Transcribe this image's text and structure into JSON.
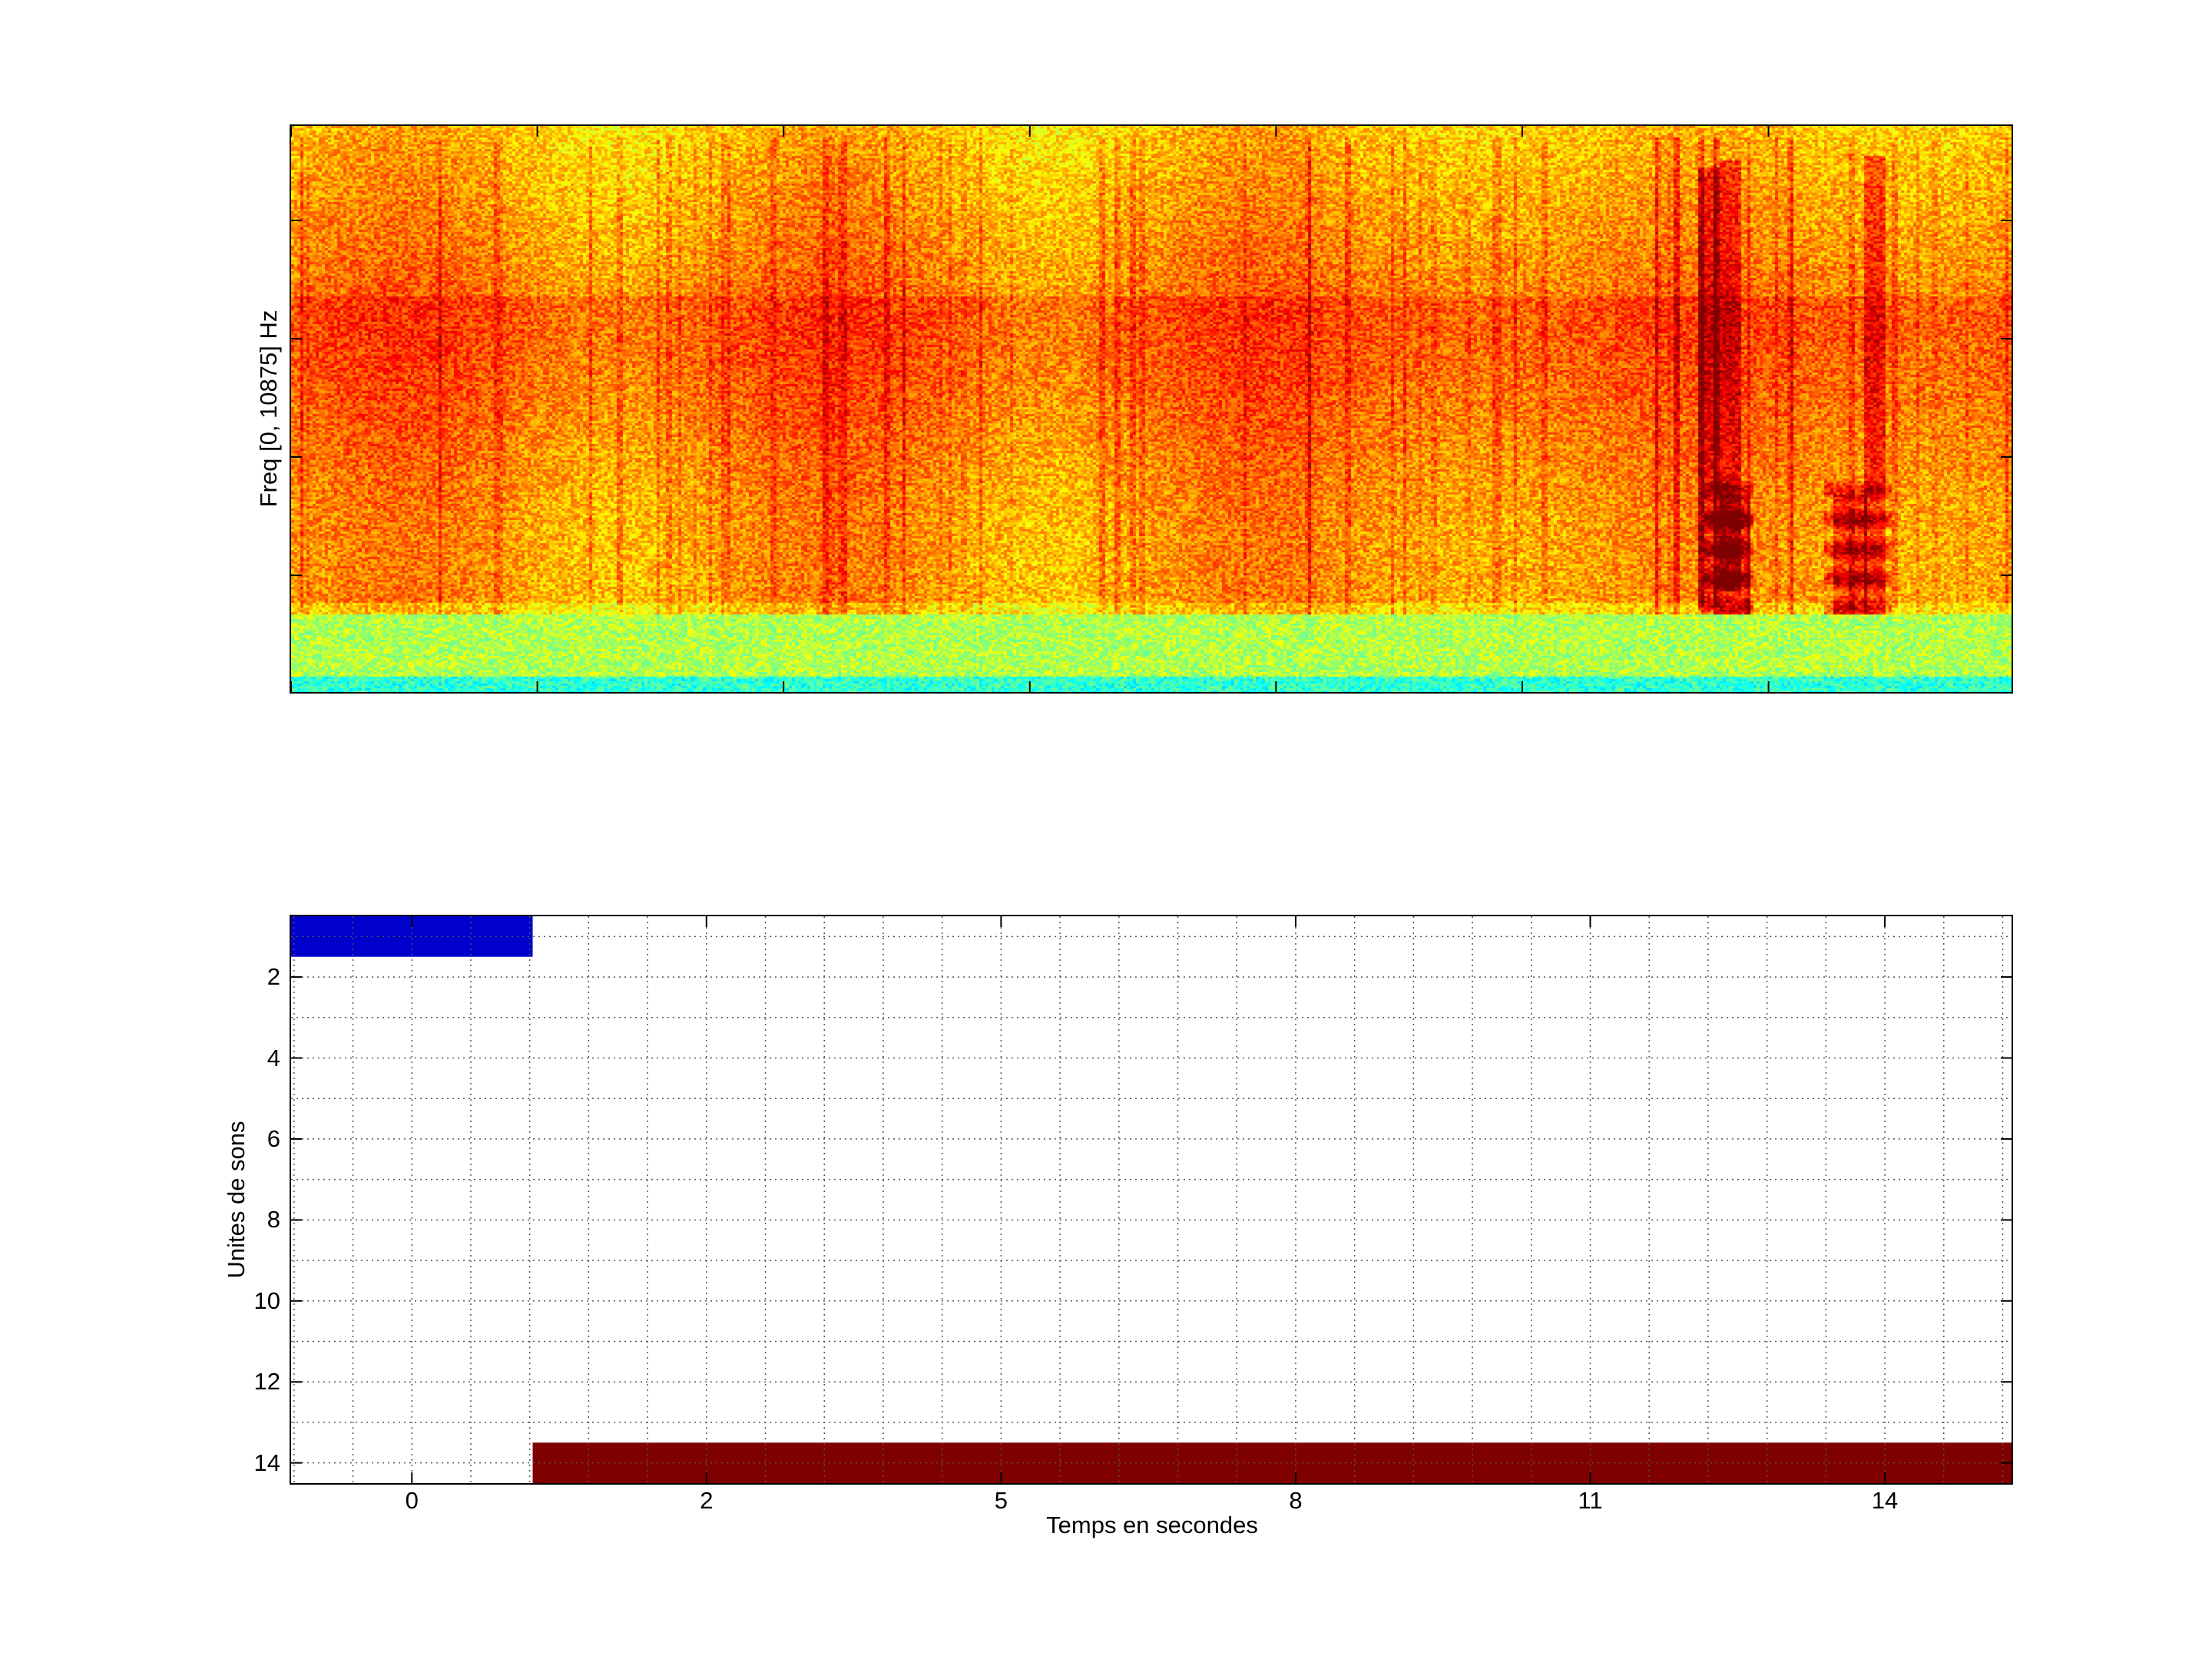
{
  "spectrogram": {
    "ylabel": "Freq [0, 10875] Hz",
    "type": "heatmap",
    "colormap": "jet"
  },
  "chart_data": {
    "type": "bar",
    "orientation": "horizontal",
    "xlabel": "Temps en secondes",
    "ylabel": "Unites de sons",
    "xtick_labels": [
      "0",
      "2",
      "5",
      "8",
      "11",
      "14"
    ],
    "xlim_tick_index": [
      -0.41,
      5.43
    ],
    "ytick_labels": [
      "2",
      "4",
      "6",
      "8",
      "10",
      "12",
      "14"
    ],
    "ylim": [
      0.5,
      14.5
    ],
    "y_reversed": true,
    "grid": true,
    "segments": [
      {
        "unit": 1,
        "start_tick_index": -0.41,
        "end_tick_index": 0.41,
        "color": "#0000cc"
      },
      {
        "unit": 14,
        "start_tick_index": 0.41,
        "end_tick_index": 5.43,
        "color": "#7f0000"
      }
    ]
  }
}
